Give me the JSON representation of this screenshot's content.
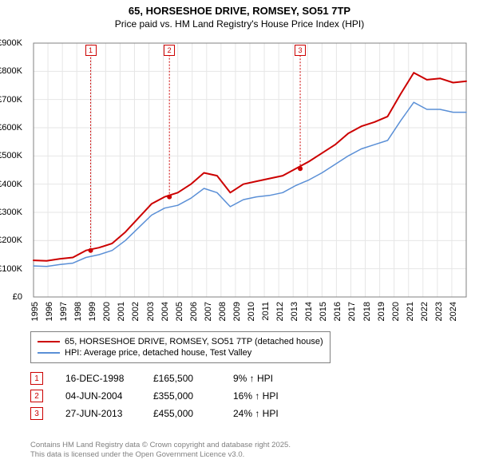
{
  "title": "65, HORSESHOE DRIVE, ROMSEY, SO51 7TP",
  "subtitle": "Price paid vs. HM Land Registry's House Price Index (HPI)",
  "chart": {
    "type": "line",
    "background_color": "#ffffff",
    "grid_color": "#e6e6e6",
    "axis_color": "#808080",
    "x_years": [
      1995,
      1996,
      1997,
      1998,
      1999,
      2000,
      2001,
      2002,
      2003,
      2004,
      2005,
      2006,
      2007,
      2008,
      2009,
      2010,
      2011,
      2012,
      2013,
      2014,
      2015,
      2016,
      2017,
      2018,
      2019,
      2020,
      2021,
      2022,
      2023,
      2024
    ],
    "ylim": [
      0,
      900
    ],
    "y_ticks": [
      0,
      100,
      200,
      300,
      400,
      500,
      600,
      700,
      800,
      900
    ],
    "y_tick_labels": [
      "£0",
      "£100K",
      "£200K",
      "£300K",
      "£400K",
      "£500K",
      "£600K",
      "£700K",
      "£800K",
      "£900K"
    ],
    "tick_fontsize": 11,
    "series": [
      {
        "name": "65, HORSESHOE DRIVE, ROMSEY, SO51 7TP (detached house)",
        "color": "#cc0000",
        "line_width": 2,
        "values": [
          130,
          128,
          135,
          140,
          165,
          175,
          190,
          230,
          280,
          330,
          355,
          370,
          400,
          440,
          430,
          370,
          400,
          410,
          420,
          430,
          455,
          480,
          510,
          540,
          580,
          605,
          620,
          640,
          720,
          795,
          770,
          775,
          760,
          765
        ]
      },
      {
        "name": "HPI: Average price, detached house, Test Valley",
        "color": "#5a8fd6",
        "line_width": 1.5,
        "values": [
          110,
          108,
          115,
          120,
          140,
          150,
          165,
          200,
          245,
          290,
          315,
          325,
          350,
          385,
          370,
          320,
          345,
          355,
          360,
          370,
          395,
          415,
          440,
          470,
          500,
          525,
          540,
          555,
          625,
          690,
          665,
          665,
          655,
          655
        ]
      }
    ],
    "sale_markers": [
      {
        "num": "1",
        "x_year": 1998.96,
        "y": 165
      },
      {
        "num": "2",
        "x_year": 2004.42,
        "y": 355
      },
      {
        "num": "3",
        "x_year": 2013.49,
        "y": 455
      }
    ],
    "marker_color": "#cc0000",
    "marker_radius": 3
  },
  "legend": {
    "border_color": "#808080",
    "items": [
      {
        "color": "#cc0000",
        "label": "65, HORSESHOE DRIVE, ROMSEY, SO51 7TP (detached house)"
      },
      {
        "color": "#5a8fd6",
        "label": "HPI: Average price, detached house, Test Valley"
      }
    ]
  },
  "sales": [
    {
      "num": "1",
      "date": "16-DEC-1998",
      "price": "£165,500",
      "delta": "9% ↑ HPI"
    },
    {
      "num": "2",
      "date": "04-JUN-2004",
      "price": "£355,000",
      "delta": "16% ↑ HPI"
    },
    {
      "num": "3",
      "date": "27-JUN-2013",
      "price": "£455,000",
      "delta": "24% ↑ HPI"
    }
  ],
  "footer": {
    "line1": "Contains HM Land Registry data © Crown copyright and database right 2025.",
    "line2": "This data is licensed under the Open Government Licence v3.0."
  }
}
